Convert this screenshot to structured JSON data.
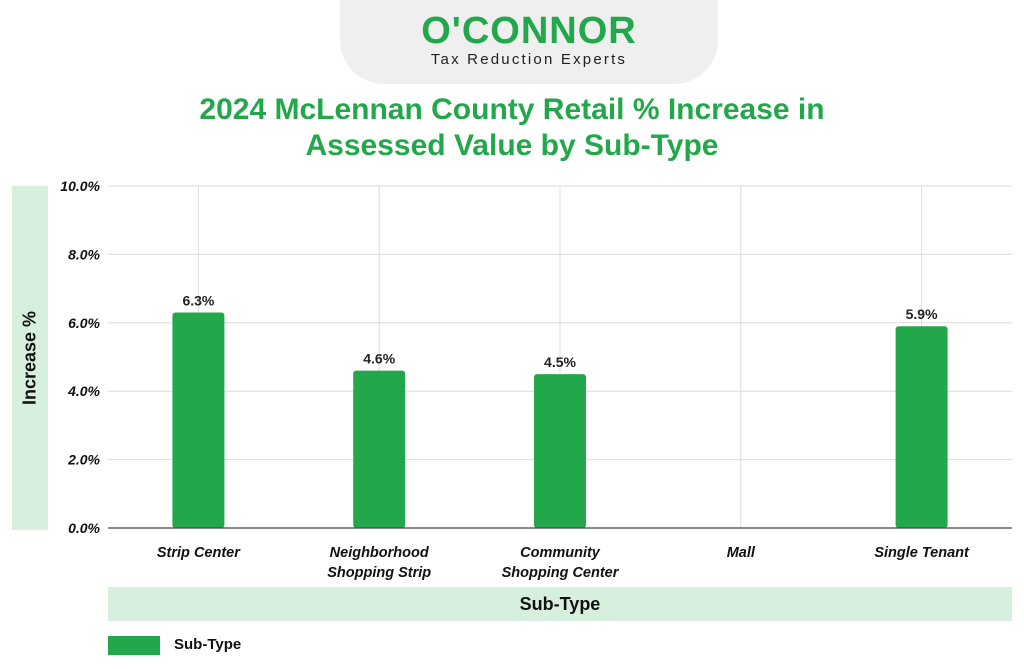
{
  "logo": {
    "wordmark": "O'CONNOR",
    "tagline": "Tax Reduction Experts"
  },
  "colors": {
    "bar": "#22a84b",
    "band": "#d6f0dd",
    "title": "#22a84b"
  },
  "chart_data": {
    "type": "bar",
    "title": "2024 McLennan County Retail % Increase in Assessed Value by Sub-Type",
    "title_lines": [
      "2024 McLennan County Retail % Increase in",
      "Assessed Value by Sub-Type"
    ],
    "xlabel": "Sub-Type",
    "ylabel": "Increase %",
    "categories": [
      "Strip Center",
      "Neighborhood Shopping Strip",
      "Community Shopping Center",
      "Mall",
      "Single Tenant"
    ],
    "category_lines": [
      [
        "Strip Center"
      ],
      [
        "Neighborhood",
        "Shopping Strip"
      ],
      [
        "Community",
        "Shopping Center"
      ],
      [
        "Mall"
      ],
      [
        "Single Tenant"
      ]
    ],
    "series": [
      {
        "name": "Sub-Type",
        "values": [
          6.3,
          4.6,
          4.5,
          null,
          5.9
        ],
        "labels": [
          "6.3%",
          "4.6%",
          "4.5%",
          "",
          "5.9%"
        ]
      }
    ],
    "ylim": [
      0,
      10
    ],
    "yticks": [
      0,
      2,
      4,
      6,
      8,
      10
    ],
    "ytick_labels": [
      "0.0%",
      "2.0%",
      "4.0%",
      "6.0%",
      "8.0%",
      "10.0%"
    ],
    "legend": {
      "position": "bottom-left",
      "entries": [
        "Sub-Type"
      ]
    }
  }
}
